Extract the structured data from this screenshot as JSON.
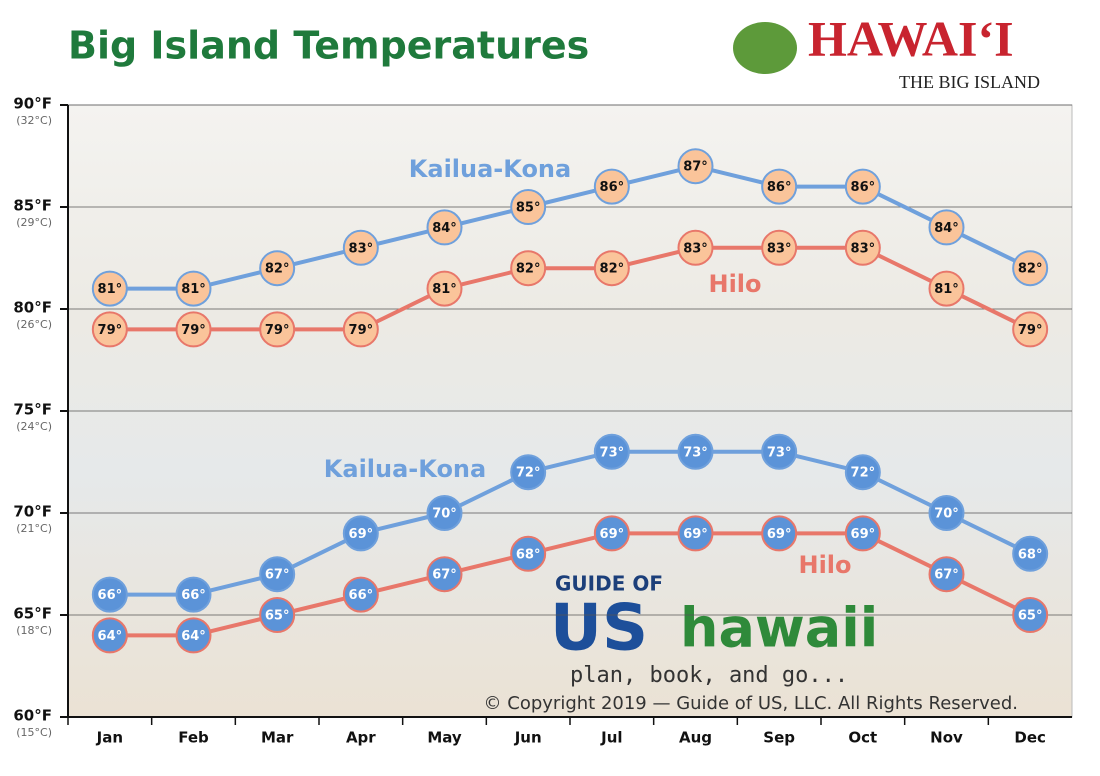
{
  "chart_data": {
    "type": "line",
    "title": "Big Island Temperatures",
    "logo": [
      "HAWAI‘I",
      "THE BIG ISLAND"
    ],
    "watermark": [
      "GUIDE OF",
      "US",
      "hawaii",
      "plan, book, and go..."
    ],
    "copyright": "© Copyright 2019 — Guide of US, LLC. All Rights Reserved.",
    "categories": [
      "Jan",
      "Feb",
      "Mar",
      "Apr",
      "May",
      "Jun",
      "Jul",
      "Aug",
      "Sep",
      "Oct",
      "Nov",
      "Dec"
    ],
    "ylim": [
      60,
      90
    ],
    "yticks": [
      {
        "value": 60,
        "label": "60°F",
        "celsius": "(15°C)"
      },
      {
        "value": 65,
        "label": "65°F",
        "celsius": "(18°C)"
      },
      {
        "value": 70,
        "label": "70°F",
        "celsius": "(21°C)"
      },
      {
        "value": 75,
        "label": "75°F",
        "celsius": "(24°C)"
      },
      {
        "value": 80,
        "label": "80°F",
        "celsius": "(26°C)"
      },
      {
        "value": 85,
        "label": "85°F",
        "celsius": "(29°C)"
      },
      {
        "value": 90,
        "label": "90°F",
        "celsius": "(32°C)"
      }
    ],
    "grid": true,
    "series": [
      {
        "name": "Kailua-Kona",
        "color": "#6fa0dc",
        "marker_color": "#fac49a",
        "values": [
          81,
          81,
          82,
          83,
          84,
          85,
          86,
          87,
          86,
          86,
          84,
          82
        ],
        "value_labels": [
          "81°",
          "81°",
          "82°",
          "83°",
          "84°",
          "85°",
          "86°",
          "87°",
          "86°",
          "86°",
          "84°",
          "82°"
        ]
      },
      {
        "name": "Hilo",
        "color": "#e8776a",
        "marker_color": "#fac49a",
        "values": [
          79,
          79,
          79,
          79,
          81,
          82,
          82,
          83,
          83,
          83,
          81,
          79
        ],
        "value_labels": [
          "79°",
          "79°",
          "79°",
          "79°",
          "81°",
          "82°",
          "82°",
          "83°",
          "83°",
          "83°",
          "81°",
          "79°"
        ]
      },
      {
        "name": "Kailua-Kona",
        "color": "#6fa0dc",
        "marker_color": "#5b93d8",
        "values": [
          66,
          66,
          67,
          69,
          70,
          72,
          73,
          73,
          73,
          72,
          70,
          68
        ],
        "value_labels": [
          "66°",
          "66°",
          "67°",
          "69°",
          "70°",
          "72°",
          "73°",
          "73°",
          "73°",
          "72°",
          "70°",
          "68°"
        ]
      },
      {
        "name": "Hilo",
        "color": "#e8776a",
        "marker_color": "#5b93d8",
        "values": [
          64,
          64,
          65,
          66,
          67,
          68,
          69,
          69,
          69,
          69,
          67,
          65
        ],
        "value_labels": [
          "64°",
          "64°",
          "65°",
          "66°",
          "67°",
          "68°",
          "69°",
          "69°",
          "69°",
          "69°",
          "67°",
          "65°"
        ]
      }
    ]
  }
}
